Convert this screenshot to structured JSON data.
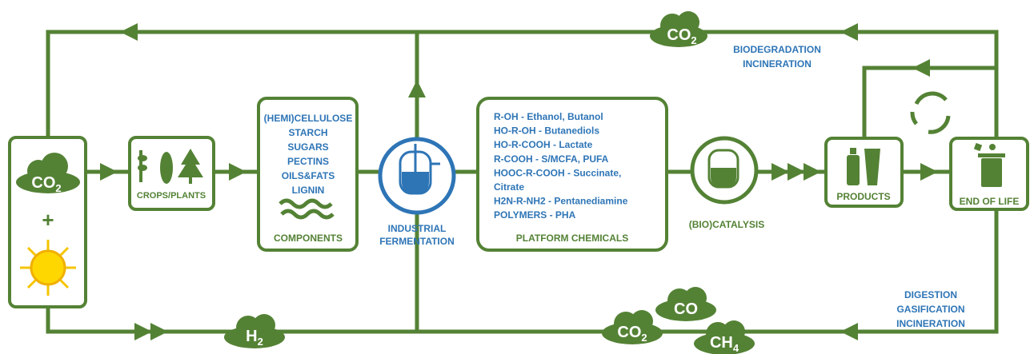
{
  "left_box": {
    "gas": {
      "label": "CO",
      "sub": "2"
    },
    "plus": "+"
  },
  "crops": {
    "label": "CROPS/PLANTS"
  },
  "components": {
    "items": [
      "(HEMI)CELLULOSE",
      "STARCH",
      "SUGARS",
      "PECTINS",
      "OILS&FATS",
      "LIGNIN"
    ],
    "label": "COMPONENTS"
  },
  "fermentation": {
    "label_lines": [
      "INDUSTRIAL",
      "FERMENTATION"
    ]
  },
  "platform_chemicals": {
    "items": [
      "R-OH - Ethanol, Butanol",
      "HO-R-OH - Butanediols",
      "HO-R-COOH - Lactate",
      "R-COOH - S/MCFA, PUFA",
      "HOOC-R-COOH - Succinate,",
      "Citrate",
      "H2N-R-NH2 - Pentanediamine",
      "POLYMERS - PHA"
    ],
    "label": "PLATFORM CHEMICALS"
  },
  "catalysis": {
    "label": "(BIO)CATALYSIS"
  },
  "products": {
    "label": "PRODUCTS"
  },
  "end_of_life": {
    "label": "END OF LIFE"
  },
  "top_loop": {
    "gas": {
      "label": "CO",
      "sub": "2"
    },
    "note_lines": [
      "BIODEGRADATION",
      "INCINERATION"
    ]
  },
  "bottom_loop": {
    "note_lines": [
      "DIGESTION",
      "GASIFICATION",
      "INCINERATION"
    ],
    "gases": [
      {
        "label": "H",
        "sub": "2"
      },
      {
        "label": "CO",
        "sub": "2"
      },
      {
        "label": "CO",
        "sub": ""
      },
      {
        "label": "CH",
        "sub": "4"
      }
    ]
  }
}
